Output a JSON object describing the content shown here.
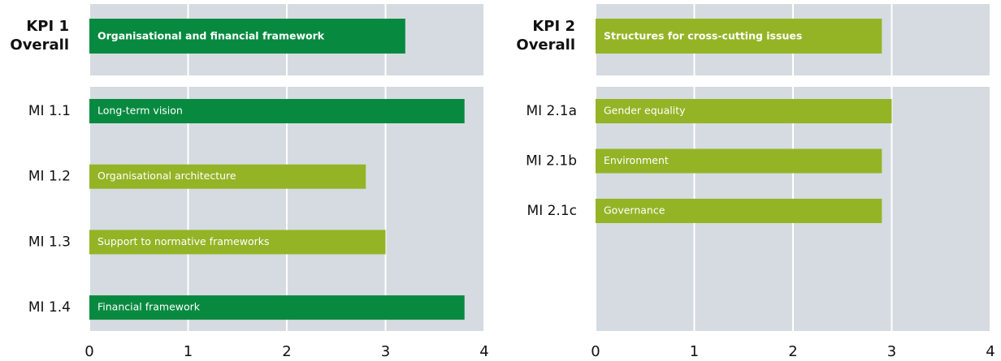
{
  "chart_data": [
    {
      "type": "bar",
      "orientation": "horizontal",
      "overall": {
        "label": [
          "KPI 1",
          "Overall"
        ],
        "name": "Organisational and financial framework",
        "value": 3.2,
        "color": "#078a3f"
      },
      "categories": [
        "MI 1.1",
        "MI 1.2",
        "MI 1.3",
        "MI 1.4"
      ],
      "bar_labels": [
        "Long-term vision",
        "Organisational architecture",
        "Support to normative frameworks",
        "Financial framework"
      ],
      "values": [
        3.8,
        2.8,
        3.0,
        3.8
      ],
      "colors": [
        "#078a3f",
        "#94b426",
        "#94b426",
        "#078a3f"
      ],
      "xlim": [
        0,
        4
      ],
      "xticks": [
        0,
        1,
        2,
        3,
        4
      ],
      "grid": true
    },
    {
      "type": "bar",
      "orientation": "horizontal",
      "overall": {
        "label": [
          "KPI 2",
          "Overall"
        ],
        "name": "Structures for cross-cutting issues",
        "value": 2.9,
        "color": "#94b426"
      },
      "categories": [
        "MI 2.1a",
        "MI 2.1b",
        "MI 2.1c"
      ],
      "bar_labels": [
        "Gender equality",
        "Environment",
        "Governance"
      ],
      "values": [
        3.0,
        2.9,
        2.9
      ],
      "colors": [
        "#94b426",
        "#94b426",
        "#94b426"
      ],
      "xlim": [
        0,
        4
      ],
      "xticks": [
        0,
        1,
        2,
        3,
        4
      ],
      "grid": true
    }
  ]
}
